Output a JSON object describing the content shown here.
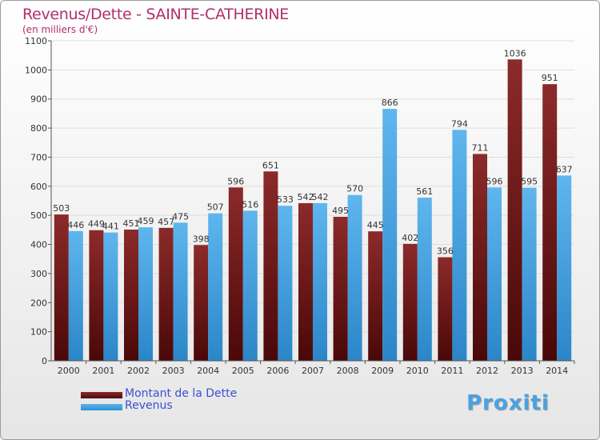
{
  "chart_data": {
    "type": "bar",
    "title": "Revenus/Dette - SAINTE-CATHERINE",
    "subtitle": "(en milliers d'€)",
    "categories": [
      "2000",
      "2001",
      "2002",
      "2003",
      "2004",
      "2005",
      "2006",
      "2007",
      "2008",
      "2009",
      "2010",
      "2011",
      "2012",
      "2013",
      "2014"
    ],
    "series": [
      {
        "name": "Montant de la Dette",
        "color": "#7a1a1a",
        "values": [
          503,
          449,
          451,
          457,
          398,
          596,
          651,
          542,
          495,
          445,
          402,
          356,
          711,
          1036,
          951
        ]
      },
      {
        "name": "Revenus",
        "color": "#3a9ee0",
        "values": [
          446,
          441,
          459,
          475,
          507,
          516,
          533,
          542,
          570,
          866,
          561,
          794,
          596,
          595,
          637
        ]
      }
    ],
    "yticks": [
      0,
      100,
      200,
      300,
      400,
      500,
      600,
      700,
      800,
      900,
      1000,
      1100
    ],
    "ylim": [
      0,
      1100
    ],
    "grid": true,
    "legend": "bottom-left"
  },
  "logo": "Proxiti"
}
